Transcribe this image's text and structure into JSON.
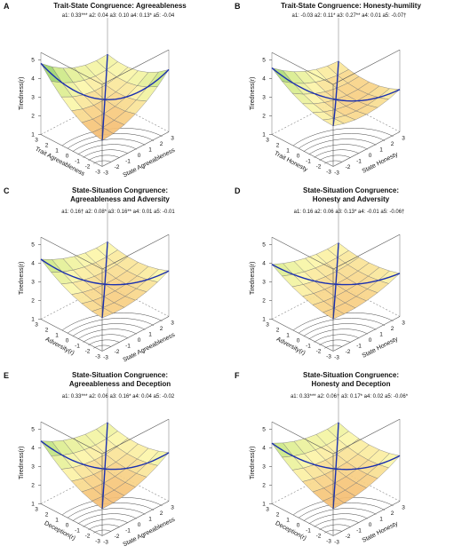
{
  "figure": {
    "panels": [
      {
        "letter": "A",
        "title_lines": [
          "Trait-State Congruence: Agreeableness"
        ],
        "coefficients": "a1: 0.33***   a2: 0.04   a3: 0.10   a4: 0.13*   a5: -0.04",
        "z_label": "Tiredness(r)",
        "x_label": "Trait Agreeableness",
        "y_label": "State Agreeableness"
      },
      {
        "letter": "B",
        "title_lines": [
          "Trait-State Congruence: Honesty-humility"
        ],
        "coefficients": "a1: -0.03   a2: 0.11*   a3: 0.27**   a4: 0.01   a5: -0.07†",
        "z_label": "Tiredness(r)",
        "x_label": "Trait Honesty",
        "y_label": "State Honesty"
      },
      {
        "letter": "C",
        "title_lines": [
          "State-Situation Congruence:",
          "Agreeableness and Adversity"
        ],
        "coefficients": "a1: 0.16†   a2: 0.08*   a3: 0.16**   a4: 0.01   a5: -0.01",
        "z_label": "Tiredness(r)",
        "x_label": "Adversity(r)",
        "y_label": "State Agreeableness"
      },
      {
        "letter": "D",
        "title_lines": [
          "State-Situation Congruence:",
          "Honesty and Adversity"
        ],
        "coefficients": "a1: 0.16   a2: 0.06   a3: 0.13*   a4: -0.01   a5: -0.06†",
        "z_label": "Tiredness(r)",
        "x_label": "Adversity(r)",
        "y_label": "State Honesty"
      },
      {
        "letter": "E",
        "title_lines": [
          "State-Situation Congruence:",
          "Agreeableness and Deception"
        ],
        "coefficients": "a1: 0.33***   a2: 0.06   a3: 0.16*   a4: 0.04   a5: -0.02",
        "z_label": "Tiredness(r)",
        "x_label": "Deception(r)",
        "y_label": "State Agreeableness"
      },
      {
        "letter": "F",
        "title_lines": [
          "State-Situation Congruence:",
          "Honesty and Deception"
        ],
        "coefficients": "a1: 0.33***   a2: 0.06†   a3: 0.17*   a4: 0.02   a5: -0.06*",
        "z_label": "Tiredness(r)",
        "x_label": "Deception(r)",
        "y_label": "State Honesty"
      }
    ],
    "z_ticks": [
      "1",
      "2",
      "3",
      "4",
      "5"
    ],
    "axis_ticks": [
      "-3",
      "-2",
      "-1",
      "0",
      "1",
      "2",
      "3"
    ]
  },
  "chart_data": [
    {
      "type": "surface",
      "panel": "A",
      "title": "Trait-State Congruence: Agreeableness",
      "coef": {
        "a1": 0.33,
        "a2": 0.04,
        "a3": 0.1,
        "a4": 0.13,
        "a5": -0.04
      },
      "x_range": [
        -3,
        3
      ],
      "y_range": [
        -3,
        3
      ],
      "z_range": [
        1,
        5
      ]
    },
    {
      "type": "surface",
      "panel": "B",
      "title": "Trait-State Congruence: Honesty-humility",
      "coef": {
        "a1": -0.03,
        "a2": 0.11,
        "a3": 0.27,
        "a4": 0.01,
        "a5": -0.07
      },
      "x_range": [
        -3,
        3
      ],
      "y_range": [
        -3,
        3
      ],
      "z_range": [
        1,
        5
      ]
    },
    {
      "type": "surface",
      "panel": "C",
      "title": "State-Situation Congruence: Agreeableness and Adversity",
      "coef": {
        "a1": 0.16,
        "a2": 0.08,
        "a3": 0.16,
        "a4": 0.01,
        "a5": -0.01
      },
      "x_range": [
        -3,
        3
      ],
      "y_range": [
        -3,
        3
      ],
      "z_range": [
        1,
        5
      ]
    },
    {
      "type": "surface",
      "panel": "D",
      "title": "State-Situation Congruence: Honesty and Adversity",
      "coef": {
        "a1": 0.16,
        "a2": 0.06,
        "a3": 0.13,
        "a4": -0.01,
        "a5": -0.06
      },
      "x_range": [
        -3,
        3
      ],
      "y_range": [
        -3,
        3
      ],
      "z_range": [
        1,
        5
      ]
    },
    {
      "type": "surface",
      "panel": "E",
      "title": "State-Situation Congruence: Agreeableness and Deception",
      "coef": {
        "a1": 0.33,
        "a2": 0.06,
        "a3": 0.16,
        "a4": 0.04,
        "a5": -0.02
      },
      "x_range": [
        -3,
        3
      ],
      "y_range": [
        -3,
        3
      ],
      "z_range": [
        1,
        5
      ]
    },
    {
      "type": "surface",
      "panel": "F",
      "title": "State-Situation Congruence: Honesty and Deception",
      "coef": {
        "a1": 0.33,
        "a2": 0.06,
        "a3": 0.17,
        "a4": 0.02,
        "a5": -0.06
      },
      "x_range": [
        -3,
        3
      ],
      "y_range": [
        -3,
        3
      ],
      "z_range": [
        1,
        5
      ]
    }
  ]
}
